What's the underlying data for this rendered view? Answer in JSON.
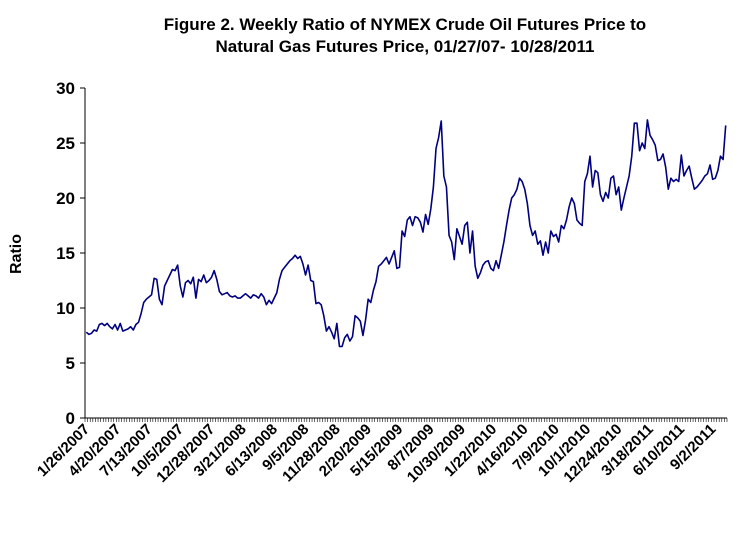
{
  "chart_data": {
    "type": "line",
    "title_line1": "Figure 2. Weekly Ratio of NYMEX Crude Oil Futures Price to",
    "title_line2": "Natural Gas Futures Price, 01/27/07- 10/28/2011",
    "ylabel": "Ratio",
    "xlabel": "",
    "ylim": [
      0,
      30
    ],
    "yticks": [
      0,
      5,
      10,
      15,
      20,
      25,
      30
    ],
    "grid": false,
    "legend": "none",
    "line_color": "#000080",
    "x_tick_labels": [
      "1/26/2007",
      "4/20/2007",
      "7/13/2007",
      "10/5/2007",
      "12/28/2007",
      "3/21/2008",
      "6/13/2008",
      "9/5/2008",
      "11/28/2008",
      "2/20/2009",
      "5/15/2009",
      "8/7/2009",
      "10/30/2009",
      "1/22/2010",
      "4/16/2010",
      "7/9/2010",
      "10/1/2010",
      "12/24/2010",
      "3/18/2011",
      "6/10/2011",
      "9/2/2011"
    ],
    "series": [
      {
        "values": [
          7.8,
          7.6,
          7.7,
          8.0,
          7.9,
          8.5,
          8.6,
          8.4,
          8.6,
          8.3,
          8.1,
          8.5,
          8.0,
          8.6,
          7.9,
          8.0,
          8.1,
          8.3,
          8.0,
          8.5,
          8.7,
          9.5,
          10.5,
          10.8,
          11.0,
          11.2,
          12.7,
          12.6,
          10.8,
          10.3,
          12.0,
          12.5,
          13.0,
          13.5,
          13.4,
          13.9,
          12.0,
          11.0,
          12.3,
          12.5,
          12.2,
          12.8,
          10.9,
          12.6,
          12.4,
          13.0,
          12.3,
          12.5,
          12.8,
          13.4,
          12.6,
          11.5,
          11.2,
          11.3,
          11.4,
          11.1,
          11.0,
          11.1,
          10.9,
          10.9,
          11.1,
          11.3,
          11.1,
          10.9,
          11.2,
          11.1,
          10.9,
          11.3,
          11.0,
          10.3,
          10.7,
          10.4,
          10.9,
          11.4,
          12.6,
          13.4,
          13.7,
          14.0,
          14.3,
          14.5,
          14.8,
          14.5,
          14.7,
          14.0,
          13.0,
          13.9,
          12.5,
          12.4,
          10.4,
          10.5,
          10.3,
          9.3,
          7.9,
          8.3,
          7.8,
          7.2,
          8.6,
          6.5,
          6.5,
          7.3,
          7.6,
          7.0,
          7.4,
          9.3,
          9.1,
          8.8,
          7.5,
          8.9,
          10.8,
          10.5,
          11.6,
          12.4,
          13.8,
          14.0,
          14.3,
          14.6,
          14.0,
          14.6,
          15.2,
          13.6,
          13.7,
          17.0,
          16.5,
          18.0,
          18.3,
          17.5,
          18.3,
          18.2,
          17.8,
          16.9,
          18.5,
          17.6,
          19.0,
          21.0,
          24.5,
          25.5,
          27.0,
          22.0,
          21.0,
          16.6,
          16.0,
          14.4,
          17.2,
          16.5,
          15.8,
          17.5,
          17.8,
          15.0,
          17.0,
          13.8,
          12.7,
          13.2,
          13.9,
          14.2,
          14.3,
          13.6,
          13.4,
          14.3,
          13.6,
          14.8,
          16.0,
          17.5,
          18.9,
          20.0,
          20.3,
          20.8,
          21.8,
          21.5,
          20.8,
          19.5,
          17.5,
          16.6,
          17.0,
          15.8,
          16.1,
          14.8,
          16.0,
          15.0,
          17.0,
          16.5,
          16.7,
          16.0,
          17.5,
          17.2,
          18.0,
          19.2,
          20.0,
          19.5,
          18.0,
          17.7,
          17.5,
          21.5,
          22.2,
          23.8,
          21.0,
          22.5,
          22.3,
          20.3,
          19.7,
          20.5,
          20.0,
          21.8,
          22.0,
          20.3,
          21.0,
          18.9,
          20.0,
          21.0,
          22.0,
          23.8,
          26.8,
          26.8,
          24.3,
          25.0,
          24.5,
          27.1,
          25.7,
          25.3,
          24.8,
          23.4,
          23.5,
          24.0,
          22.8,
          20.8,
          21.8,
          21.5,
          21.7,
          21.5,
          23.9,
          22.0,
          22.5,
          22.9,
          21.8,
          20.8,
          21.0,
          21.3,
          21.6,
          22.0,
          22.2,
          23.0,
          21.7,
          21.8,
          22.5,
          23.8,
          23.5,
          26.6
        ]
      }
    ]
  }
}
